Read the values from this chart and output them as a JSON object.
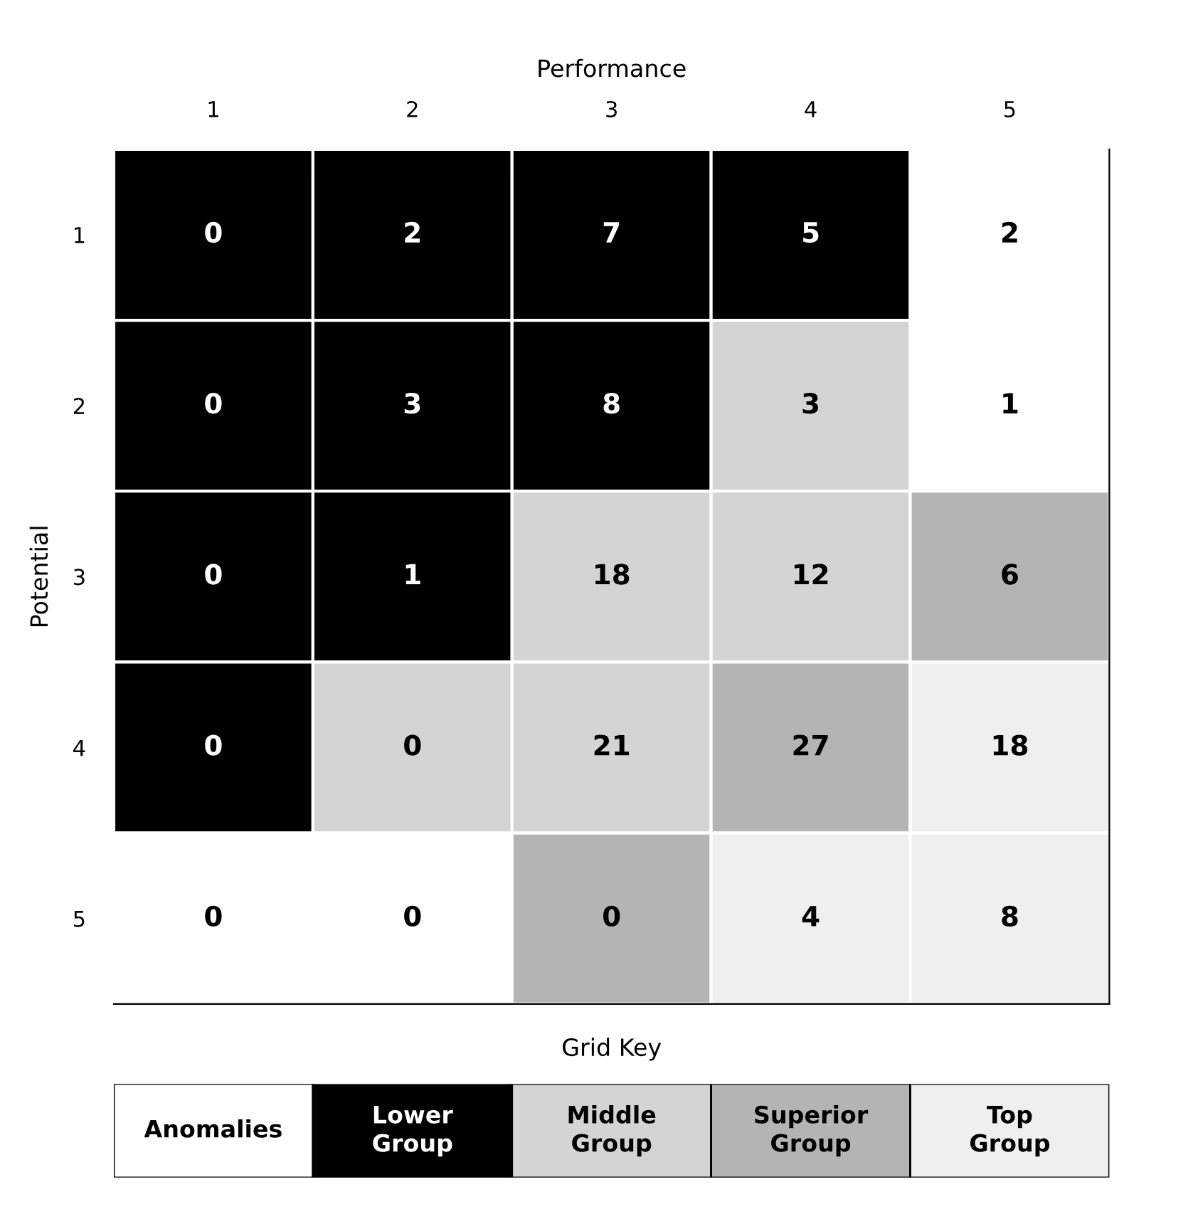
{
  "chart_data": [
    {
      "type": "heatmap",
      "xlabel": "Performance",
      "ylabel": "Potential",
      "categories": [
        "1",
        "2",
        "3",
        "4",
        "5"
      ],
      "y_categories": [
        "1",
        "2",
        "3",
        "4",
        "5"
      ],
      "data_labels": true,
      "cells": [
        [
          0,
          2,
          7,
          5,
          2
        ],
        [
          0,
          3,
          8,
          3,
          1
        ],
        [
          0,
          1,
          18,
          12,
          6
        ],
        [
          0,
          0,
          21,
          27,
          18
        ],
        [
          0,
          0,
          0,
          4,
          8
        ]
      ],
      "colors": [
        [
          "#000000",
          "#000000",
          "#000000",
          "#000000",
          "#ffffff"
        ],
        [
          "#000000",
          "#000000",
          "#000000",
          "#d4d4d4",
          "#ffffff"
        ],
        [
          "#000000",
          "#000000",
          "#d4d4d4",
          "#d4d4d4",
          "#b4b4b4"
        ],
        [
          "#000000",
          "#d4d4d4",
          "#d4d4d4",
          "#b4b4b4",
          "#efefef"
        ],
        [
          "#ffffff",
          "#ffffff",
          "#b4b4b4",
          "#efefef",
          "#efefef"
        ]
      ]
    },
    {
      "type": "other",
      "title": "Grid Key",
      "categories": [
        "Anomalies",
        "Lower Group",
        "Middle Group",
        "Superior Group",
        "Top Group"
      ],
      "colors": [
        "#ffffff",
        "#000000",
        "#d4d4d4",
        "#b4b4b4",
        "#efefef"
      ]
    }
  ]
}
